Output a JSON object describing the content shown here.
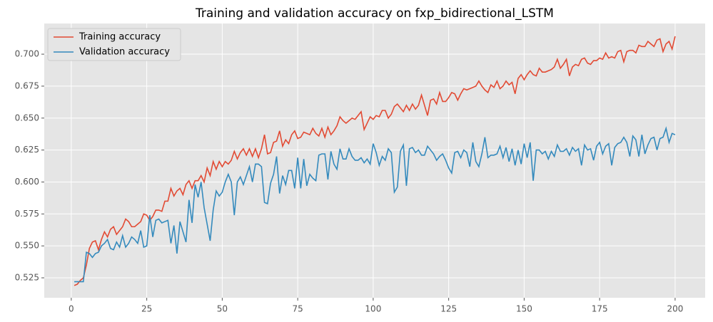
{
  "chart_data": {
    "type": "line",
    "title": "Training and validation accuracy on fxp_bidirectional_LSTM",
    "x": [
      1,
      2,
      3,
      4,
      5,
      6,
      7,
      8,
      9,
      10,
      11,
      12,
      13,
      14,
      15,
      16,
      17,
      18,
      19,
      20,
      21,
      22,
      23,
      24,
      25,
      26,
      27,
      28,
      29,
      30,
      31,
      32,
      33,
      34,
      35,
      36,
      37,
      38,
      39,
      40,
      41,
      42,
      43,
      44,
      45,
      46,
      47,
      48,
      49,
      50,
      51,
      52,
      53,
      54,
      55,
      56,
      57,
      58,
      59,
      60,
      61,
      62,
      63,
      64,
      65,
      66,
      67,
      68,
      69,
      70,
      71,
      72,
      73,
      74,
      75,
      76,
      77,
      78,
      79,
      80,
      81,
      82,
      83,
      84,
      85,
      86,
      87,
      88,
      89,
      90,
      91,
      92,
      93,
      94,
      95,
      96,
      97,
      98,
      99,
      100,
      101,
      102,
      103,
      104,
      105,
      106,
      107,
      108,
      109,
      110,
      111,
      112,
      113,
      114,
      115,
      116,
      117,
      118,
      119,
      120,
      121,
      122,
      123,
      124,
      125,
      126,
      127,
      128,
      129,
      130,
      131,
      132,
      133,
      134,
      135,
      136,
      137,
      138,
      139,
      140,
      141,
      142,
      143,
      144,
      145,
      146,
      147,
      148,
      149,
      150,
      151,
      152,
      153,
      154,
      155,
      156,
      157,
      158,
      159,
      160,
      161,
      162,
      163,
      164,
      165,
      166,
      167,
      168,
      169,
      170,
      171,
      172,
      173,
      174,
      175,
      176,
      177,
      178,
      179,
      180,
      181,
      182,
      183,
      184,
      185,
      186,
      187,
      188,
      189,
      190,
      191,
      192,
      193,
      194,
      195,
      196,
      197,
      198,
      199,
      200
    ],
    "series": [
      {
        "name": "Training accuracy",
        "color": "#e24a33",
        "values": [
          0.519,
          0.52,
          0.523,
          0.525,
          0.535,
          0.548,
          0.553,
          0.554,
          0.547,
          0.555,
          0.561,
          0.557,
          0.563,
          0.565,
          0.559,
          0.562,
          0.565,
          0.571,
          0.569,
          0.565,
          0.565,
          0.567,
          0.569,
          0.575,
          0.574,
          0.57,
          0.573,
          0.578,
          0.578,
          0.577,
          0.585,
          0.585,
          0.595,
          0.589,
          0.593,
          0.595,
          0.59,
          0.598,
          0.601,
          0.595,
          0.601,
          0.601,
          0.605,
          0.6,
          0.611,
          0.605,
          0.616,
          0.61,
          0.616,
          0.612,
          0.616,
          0.614,
          0.617,
          0.624,
          0.618,
          0.623,
          0.626,
          0.621,
          0.626,
          0.62,
          0.626,
          0.619,
          0.626,
          0.637,
          0.622,
          0.623,
          0.631,
          0.632,
          0.64,
          0.628,
          0.633,
          0.63,
          0.637,
          0.64,
          0.634,
          0.635,
          0.639,
          0.638,
          0.637,
          0.642,
          0.638,
          0.636,
          0.642,
          0.635,
          0.643,
          0.637,
          0.64,
          0.644,
          0.651,
          0.648,
          0.646,
          0.648,
          0.65,
          0.649,
          0.652,
          0.655,
          0.641,
          0.646,
          0.651,
          0.649,
          0.652,
          0.651,
          0.656,
          0.656,
          0.65,
          0.653,
          0.659,
          0.661,
          0.658,
          0.655,
          0.66,
          0.656,
          0.661,
          0.657,
          0.66,
          0.668,
          0.66,
          0.652,
          0.664,
          0.665,
          0.661,
          0.67,
          0.663,
          0.663,
          0.666,
          0.67,
          0.669,
          0.664,
          0.669,
          0.673,
          0.672,
          0.673,
          0.674,
          0.675,
          0.679,
          0.675,
          0.672,
          0.67,
          0.676,
          0.674,
          0.679,
          0.673,
          0.675,
          0.679,
          0.676,
          0.678,
          0.669,
          0.681,
          0.684,
          0.68,
          0.684,
          0.687,
          0.684,
          0.683,
          0.689,
          0.686,
          0.686,
          0.687,
          0.688,
          0.69,
          0.696,
          0.689,
          0.692,
          0.696,
          0.683,
          0.69,
          0.692,
          0.691,
          0.696,
          0.697,
          0.693,
          0.692,
          0.695,
          0.695,
          0.697,
          0.696,
          0.701,
          0.697,
          0.698,
          0.697,
          0.702,
          0.703,
          0.694,
          0.702,
          0.703,
          0.703,
          0.701,
          0.707,
          0.706,
          0.706,
          0.71,
          0.708,
          0.706,
          0.711,
          0.712,
          0.702,
          0.708,
          0.71,
          0.704,
          0.714
        ]
      },
      {
        "name": "Validation accuracy",
        "color": "#348abd",
        "values": [
          0.522,
          0.522,
          0.522,
          0.522,
          0.545,
          0.544,
          0.541,
          0.544,
          0.545,
          0.55,
          0.552,
          0.555,
          0.548,
          0.547,
          0.553,
          0.549,
          0.558,
          0.549,
          0.552,
          0.557,
          0.555,
          0.552,
          0.562,
          0.549,
          0.55,
          0.574,
          0.557,
          0.57,
          0.571,
          0.568,
          0.569,
          0.57,
          0.552,
          0.566,
          0.544,
          0.569,
          0.561,
          0.553,
          0.586,
          0.568,
          0.598,
          0.588,
          0.6,
          0.58,
          0.567,
          0.554,
          0.578,
          0.593,
          0.589,
          0.592,
          0.6,
          0.606,
          0.6,
          0.574,
          0.6,
          0.604,
          0.598,
          0.605,
          0.612,
          0.6,
          0.614,
          0.614,
          0.612,
          0.584,
          0.583,
          0.599,
          0.606,
          0.62,
          0.591,
          0.605,
          0.598,
          0.609,
          0.609,
          0.595,
          0.619,
          0.595,
          0.618,
          0.597,
          0.606,
          0.603,
          0.601,
          0.621,
          0.622,
          0.622,
          0.602,
          0.624,
          0.614,
          0.61,
          0.626,
          0.618,
          0.618,
          0.626,
          0.62,
          0.617,
          0.617,
          0.619,
          0.615,
          0.618,
          0.614,
          0.63,
          0.623,
          0.613,
          0.62,
          0.617,
          0.626,
          0.623,
          0.592,
          0.596,
          0.624,
          0.629,
          0.597,
          0.626,
          0.627,
          0.623,
          0.625,
          0.621,
          0.621,
          0.628,
          0.625,
          0.622,
          0.617,
          0.62,
          0.622,
          0.617,
          0.611,
          0.607,
          0.623,
          0.624,
          0.619,
          0.625,
          0.623,
          0.612,
          0.631,
          0.616,
          0.612,
          0.622,
          0.635,
          0.619,
          0.621,
          0.621,
          0.622,
          0.628,
          0.619,
          0.627,
          0.616,
          0.626,
          0.613,
          0.625,
          0.614,
          0.63,
          0.619,
          0.631,
          0.601,
          0.625,
          0.625,
          0.622,
          0.624,
          0.618,
          0.624,
          0.62,
          0.629,
          0.624,
          0.624,
          0.626,
          0.621,
          0.627,
          0.624,
          0.626,
          0.613,
          0.629,
          0.625,
          0.626,
          0.617,
          0.628,
          0.631,
          0.622,
          0.628,
          0.63,
          0.613,
          0.627,
          0.63,
          0.631,
          0.635,
          0.631,
          0.62,
          0.636,
          0.633,
          0.62,
          0.637,
          0.622,
          0.629,
          0.634,
          0.635,
          0.625,
          0.634,
          0.635,
          0.642,
          0.631,
          0.638,
          0.637
        ]
      }
    ],
    "xlim": [
      -8.95,
      209.95
    ],
    "xticks": [
      0,
      25,
      50,
      75,
      100,
      125,
      150,
      175,
      200
    ],
    "ylim": [
      0.5094,
      0.724
    ],
    "yticks": [
      0.525,
      {
        "value": 0.55,
        "label": "0.550"
      },
      0.575,
      {
        "value": 0.6,
        "label": "0.600"
      },
      0.625,
      {
        "value": 0.65,
        "label": "0.650"
      },
      0.675,
      {
        "value": 0.7,
        "label": "0.700"
      }
    ],
    "grid": true,
    "legend": "upper-left"
  }
}
